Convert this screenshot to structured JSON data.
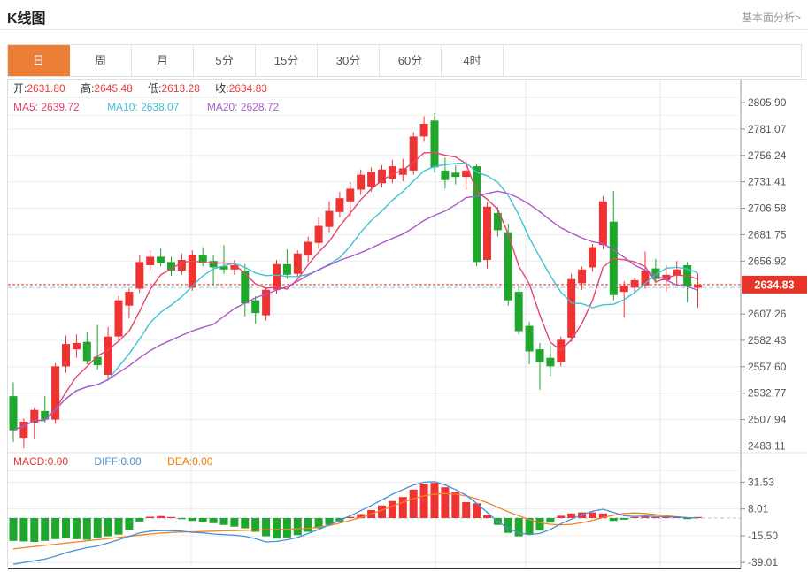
{
  "header": {
    "title": "K线图",
    "link": "基本面分析>"
  },
  "tabs": {
    "items": [
      "日",
      "周",
      "月",
      "5分",
      "15分",
      "30分",
      "60分",
      "4时"
    ],
    "active_index": 0
  },
  "ohlc_row": {
    "open_label": "开:",
    "open": "2631.80",
    "high_label": "高:",
    "high": "2645.48",
    "low_label": "低:",
    "low": "2613.28",
    "close_label": "收:",
    "close": "2634.83"
  },
  "ma_row": {
    "ma5": "MA5: 2639.72",
    "ma10": "MA10: 2638.07",
    "ma20": "MA20: 2628.72"
  },
  "macd_row": {
    "macd": "MACD:0.00",
    "diff": "DIFF:0.00",
    "dea": "DEA:0.00"
  },
  "colors": {
    "up": "#ef3333",
    "down": "#1fa62c",
    "ma5": "#e8436d",
    "ma10": "#3ec3d5",
    "ma20": "#ab57cb",
    "diff_line": "#4a90d8",
    "dea_line": "#f08426",
    "badge": "#e43528",
    "price_dotted": "#e43528",
    "ref_dashed": "#a9c9e9",
    "grid": "#ececec",
    "vgrid": "#e7e7e7",
    "axis_line": "#999999",
    "axis_text": "#555555",
    "baseline": "#333333",
    "tab_active_bg": "#ec7e35"
  },
  "chart_data": {
    "type": "candlestick+macd",
    "title": "K线图 (日)",
    "price_axis_ticks": [
      2805.9,
      2781.07,
      2756.24,
      2731.41,
      2706.58,
      2681.75,
      2656.92,
      2607.26,
      2582.43,
      2557.6,
      2532.77,
      2507.94,
      2483.11
    ],
    "current_price": 2634.83,
    "reference_price": 2632.09,
    "macd_axis_ticks": [
      31.53,
      8.01,
      -15.5,
      -39.01
    ],
    "ma_periods": [
      5,
      10,
      20
    ],
    "candles_format": [
      "open",
      "high",
      "low",
      "close"
    ],
    "candles": [
      [
        2530,
        2543,
        2487,
        2498
      ],
      [
        2491,
        2509,
        2481,
        2506
      ],
      [
        2505,
        2519,
        2490,
        2517
      ],
      [
        2516,
        2530,
        2505,
        2508
      ],
      [
        2508,
        2561,
        2504,
        2558
      ],
      [
        2558,
        2587,
        2552,
        2579
      ],
      [
        2574,
        2588,
        2566,
        2580
      ],
      [
        2581,
        2590,
        2560,
        2563
      ],
      [
        2567,
        2597,
        2555,
        2559
      ],
      [
        2550,
        2595,
        2546,
        2586
      ],
      [
        2586,
        2624,
        2581,
        2620
      ],
      [
        2615,
        2631,
        2603,
        2628
      ],
      [
        2631,
        2663,
        2627,
        2656
      ],
      [
        2653,
        2667,
        2648,
        2661
      ],
      [
        2661,
        2669,
        2652,
        2655
      ],
      [
        2656,
        2661,
        2643,
        2648
      ],
      [
        2648,
        2664,
        2644,
        2658
      ],
      [
        2632,
        2667,
        2629,
        2663
      ],
      [
        2663,
        2670,
        2652,
        2655
      ],
      [
        2657,
        2663,
        2634,
        2651
      ],
      [
        2652,
        2672,
        2645,
        2649
      ],
      [
        2649,
        2658,
        2644,
        2653
      ],
      [
        2648,
        2654,
        2605,
        2617
      ],
      [
        2620,
        2624,
        2598,
        2608
      ],
      [
        2606,
        2632,
        2601,
        2630
      ],
      [
        2630,
        2658,
        2626,
        2654
      ],
      [
        2654,
        2668,
        2640,
        2644
      ],
      [
        2645,
        2667,
        2642,
        2664
      ],
      [
        2662,
        2680,
        2656,
        2675
      ],
      [
        2674,
        2698,
        2669,
        2690
      ],
      [
        2689,
        2713,
        2684,
        2704
      ],
      [
        2703,
        2722,
        2698,
        2716
      ],
      [
        2713,
        2731,
        2699,
        2725
      ],
      [
        2724,
        2743,
        2719,
        2738
      ],
      [
        2727,
        2745,
        2722,
        2741
      ],
      [
        2730,
        2747,
        2726,
        2743
      ],
      [
        2734,
        2752,
        2730,
        2746
      ],
      [
        2738,
        2753,
        2732,
        2744
      ],
      [
        2742,
        2778,
        2738,
        2774
      ],
      [
        2774,
        2793,
        2769,
        2786
      ],
      [
        2789,
        2796,
        2740,
        2745
      ],
      [
        2742,
        2754,
        2725,
        2733
      ],
      [
        2740,
        2747,
        2729,
        2736
      ],
      [
        2736,
        2751,
        2724,
        2742
      ],
      [
        2746,
        2748,
        2652,
        2656
      ],
      [
        2658,
        2712,
        2650,
        2708
      ],
      [
        2702,
        2708,
        2680,
        2686
      ],
      [
        2684,
        2692,
        2615,
        2620
      ],
      [
        2628,
        2634,
        2588,
        2591
      ],
      [
        2596,
        2600,
        2560,
        2572
      ],
      [
        2574,
        2580,
        2536,
        2562
      ],
      [
        2566,
        2578,
        2549,
        2558
      ],
      [
        2562,
        2586,
        2558,
        2583
      ],
      [
        2585,
        2645,
        2581,
        2640
      ],
      [
        2636,
        2652,
        2630,
        2649
      ],
      [
        2651,
        2673,
        2647,
        2670
      ],
      [
        2672,
        2718,
        2668,
        2713
      ],
      [
        2694,
        2723,
        2620,
        2625
      ],
      [
        2628,
        2638,
        2604,
        2634
      ],
      [
        2632,
        2641,
        2628,
        2639
      ],
      [
        2634,
        2666,
        2631,
        2648
      ],
      [
        2650,
        2659,
        2636,
        2640
      ],
      [
        2639,
        2653,
        2628,
        2644
      ],
      [
        2643,
        2657,
        2634,
        2649
      ],
      [
        2653,
        2656,
        2618,
        2633
      ],
      [
        2631.8,
        2645.48,
        2613.28,
        2634.83
      ]
    ],
    "macd": {
      "hist": [
        -20,
        -20.5,
        -21,
        -20,
        -18.5,
        -17.5,
        -18.5,
        -19,
        -17,
        -16,
        -14.5,
        -10.5,
        -3,
        1.2,
        1.8,
        0.8,
        -1,
        -2.5,
        -3.5,
        -4.5,
        -6,
        -7.5,
        -9,
        -12,
        -16,
        -18,
        -17,
        -15,
        -12,
        -9,
        -6,
        -3,
        1,
        3.5,
        7,
        11,
        15,
        18.5,
        25,
        30,
        31,
        27,
        23,
        14,
        13,
        2.5,
        -6,
        -13,
        -16,
        -14,
        -11,
        -4,
        2,
        4,
        5,
        5,
        4,
        -2.5,
        -1.5,
        0.8,
        1.2,
        0.8,
        0.6,
        0.5,
        -0.4,
        0
      ],
      "diff": [
        -40.5,
        -39,
        -37.5,
        -36,
        -33.5,
        -30.5,
        -28,
        -26,
        -24.5,
        -22,
        -19,
        -16,
        -13,
        -11.5,
        -11,
        -11,
        -11.5,
        -12.5,
        -13,
        -14,
        -14.5,
        -15,
        -16,
        -18,
        -21,
        -20.5,
        -19,
        -17,
        -13.5,
        -10,
        -6,
        -2,
        2,
        6.5,
        11,
        16,
        21,
        25,
        29,
        31.5,
        32,
        29,
        25,
        20,
        13,
        5,
        -3,
        -9,
        -13,
        -14.5,
        -13.5,
        -10,
        -5,
        -1,
        3,
        6,
        7.8,
        5,
        2,
        1.5,
        1.8,
        1.5,
        1.2,
        1,
        0.3,
        0
      ],
      "dea": [
        -27,
        -26,
        -25,
        -24,
        -23,
        -22,
        -21,
        -20,
        -19,
        -18,
        -17,
        -16,
        -15,
        -14,
        -13.2,
        -12.6,
        -12.2,
        -12,
        -11.8,
        -11.5,
        -11.2,
        -11,
        -10.8,
        -10.5,
        -10.2,
        -10,
        -9.8,
        -9.5,
        -9,
        -8,
        -6.5,
        -4.5,
        -2,
        0.5,
        3.5,
        7,
        10.5,
        14,
        17,
        19.5,
        21,
        21.5,
        21,
        19.5,
        17,
        13.5,
        9.5,
        5.5,
        2,
        -1.5,
        -4,
        -5.5,
        -6,
        -5.5,
        -4,
        -2,
        0.5,
        2.5,
        4,
        4.5,
        4,
        3,
        2,
        1.2,
        0.5,
        0
      ]
    },
    "legend": {
      "price_lines": [
        "MA5",
        "MA10",
        "MA20"
      ],
      "macd_lines": [
        "DIFF",
        "DEA"
      ],
      "grid": true
    }
  }
}
